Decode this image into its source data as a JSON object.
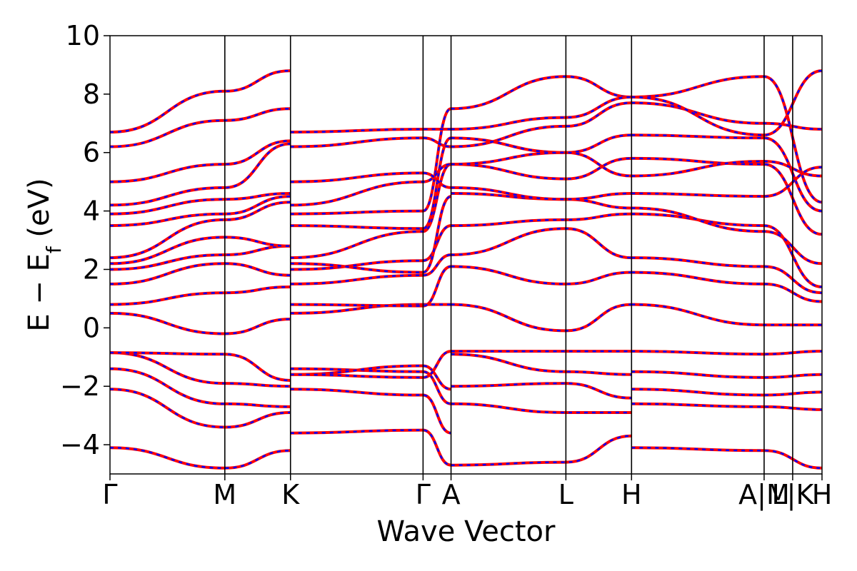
{
  "chart_data": {
    "type": "line",
    "title": "",
    "xlabel": "Wave Vector",
    "ylabel": "E − E",
    "ylabel_sub": "f",
    "ylabel_unit": " (eV)",
    "ylim": [
      -5,
      10
    ],
    "yticks": [
      -4,
      -2,
      0,
      2,
      4,
      6,
      8,
      10
    ],
    "ytick_labels": [
      "−4",
      "−2",
      "0",
      "2",
      "4",
      "6",
      "8",
      "10"
    ],
    "kpath": [
      {
        "label": "Γ",
        "x": 0.0
      },
      {
        "label": "M",
        "x": 0.1613
      },
      {
        "label": "K",
        "x": 0.2535
      },
      {
        "label": "Γ",
        "x": 0.4397
      },
      {
        "label": "A",
        "x": 0.479
      },
      {
        "label": "L",
        "x": 0.6403
      },
      {
        "label": "H",
        "x": 0.7325
      },
      {
        "label": "A|M",
        "x": 0.9187
      },
      {
        "label": "L|K",
        "x": 0.9588
      },
      {
        "label": "H",
        "x": 1.0
      }
    ],
    "xlim": [
      0,
      1
    ],
    "grid": false,
    "series": [
      {
        "color": "#ff0000",
        "style": "solid"
      },
      {
        "color": "#0000ff",
        "style": "dashed"
      }
    ],
    "bands": [
      {
        "seg": [
          [
            -4.1,
            -4.8,
            -4.2
          ],
          [
            -3.6,
            -3.5,
            -4.7
          ],
          [
            -4.7,
            -4.6,
            -3.7
          ],
          [
            -4.1,
            -4.2,
            -4.8
          ]
        ]
      },
      {
        "seg": [
          [
            -2.1,
            -3.4,
            -2.9
          ],
          [
            -2.1,
            -2.3,
            -3.6
          ],
          [
            -2.0,
            -1.9,
            -2.4
          ],
          [
            -2.1,
            -2.3,
            -2.2
          ]
        ]
      },
      {
        "seg": [
          [
            -1.4,
            -2.6,
            -2.7
          ],
          [
            -1.4,
            -1.5,
            -2.6
          ],
          [
            -2.6,
            -2.9,
            -2.9
          ],
          [
            -2.6,
            -2.7,
            -2.8
          ]
        ]
      },
      {
        "seg": [
          [
            -0.85,
            -1.9,
            -2.0
          ],
          [
            -1.6,
            -1.3,
            -2.1
          ],
          [
            -0.9,
            -1.5,
            -1.6
          ],
          [
            -1.5,
            -1.7,
            -1.6
          ]
        ]
      },
      {
        "seg": [
          [
            -0.85,
            -0.9,
            -1.8
          ],
          [
            -1.6,
            -1.7,
            -0.8
          ],
          [
            -0.8,
            -0.8,
            -0.8
          ],
          [
            -0.8,
            -0.9,
            -0.8
          ]
        ]
      },
      {
        "seg": [
          [
            0.5,
            -0.2,
            0.3
          ],
          [
            0.5,
            0.8,
            0.8
          ],
          [
            0.8,
            -0.1,
            0.8
          ],
          [
            0.8,
            0.1,
            0.1
          ]
        ]
      },
      {
        "seg": [
          [
            0.8,
            1.2,
            1.4
          ],
          [
            0.8,
            0.75,
            2.1
          ],
          [
            2.1,
            1.5,
            1.9
          ],
          [
            1.9,
            1.5,
            0.9
          ]
        ]
      },
      {
        "seg": [
          [
            1.5,
            2.2,
            1.8
          ],
          [
            1.5,
            1.8,
            2.5
          ],
          [
            2.5,
            3.4,
            2.4
          ],
          [
            2.4,
            2.1,
            1.2
          ]
        ]
      },
      {
        "seg": [
          [
            2.0,
            2.5,
            2.8
          ],
          [
            2.0,
            2.3,
            3.5
          ],
          [
            3.5,
            3.7,
            3.9
          ],
          [
            3.9,
            3.5,
            1.4
          ]
        ]
      },
      {
        "seg": [
          [
            2.2,
            3.1,
            2.8
          ],
          [
            2.2,
            1.9,
            4.5
          ],
          [
            4.6,
            4.4,
            4.1
          ],
          [
            4.1,
            3.3,
            2.2
          ]
        ]
      },
      {
        "seg": [
          [
            2.4,
            3.7,
            4.3
          ],
          [
            2.4,
            3.3,
            5.6
          ],
          [
            5.6,
            5.1,
            5.8
          ],
          [
            5.8,
            5.6,
            3.2
          ]
        ]
      },
      {
        "seg": [
          [
            3.5,
            3.9,
            4.5
          ],
          [
            3.5,
            3.4,
            6.5
          ],
          [
            6.5,
            6.0,
            6.6
          ],
          [
            6.6,
            6.5,
            4.0
          ]
        ]
      },
      {
        "seg": [
          [
            3.9,
            4.4,
            4.6
          ],
          [
            3.9,
            4.0,
            7.5
          ],
          [
            7.5,
            8.6,
            7.9
          ],
          [
            7.9,
            8.6,
            4.3
          ]
        ]
      },
      {
        "seg": [
          [
            4.2,
            4.8,
            6.3
          ],
          [
            4.2,
            5.0,
            5.6
          ],
          [
            5.6,
            6.0,
            5.2
          ],
          [
            5.2,
            5.7,
            5.2
          ]
        ]
      },
      {
        "seg": [
          [
            5.0,
            5.6,
            6.4
          ],
          [
            5.0,
            5.3,
            4.8
          ],
          [
            4.8,
            4.4,
            4.6
          ],
          [
            4.6,
            4.5,
            5.5
          ]
        ]
      },
      {
        "seg": [
          [
            6.2,
            7.1,
            7.5
          ],
          [
            6.2,
            6.5,
            6.2
          ],
          [
            6.2,
            6.9,
            7.7
          ],
          [
            7.7,
            7.0,
            6.8
          ]
        ]
      },
      {
        "seg": [
          [
            6.7,
            8.1,
            8.8
          ],
          [
            6.7,
            6.8,
            6.8
          ],
          [
            6.8,
            7.2,
            7.9
          ],
          [
            7.9,
            6.6,
            8.8
          ]
        ]
      }
    ]
  }
}
